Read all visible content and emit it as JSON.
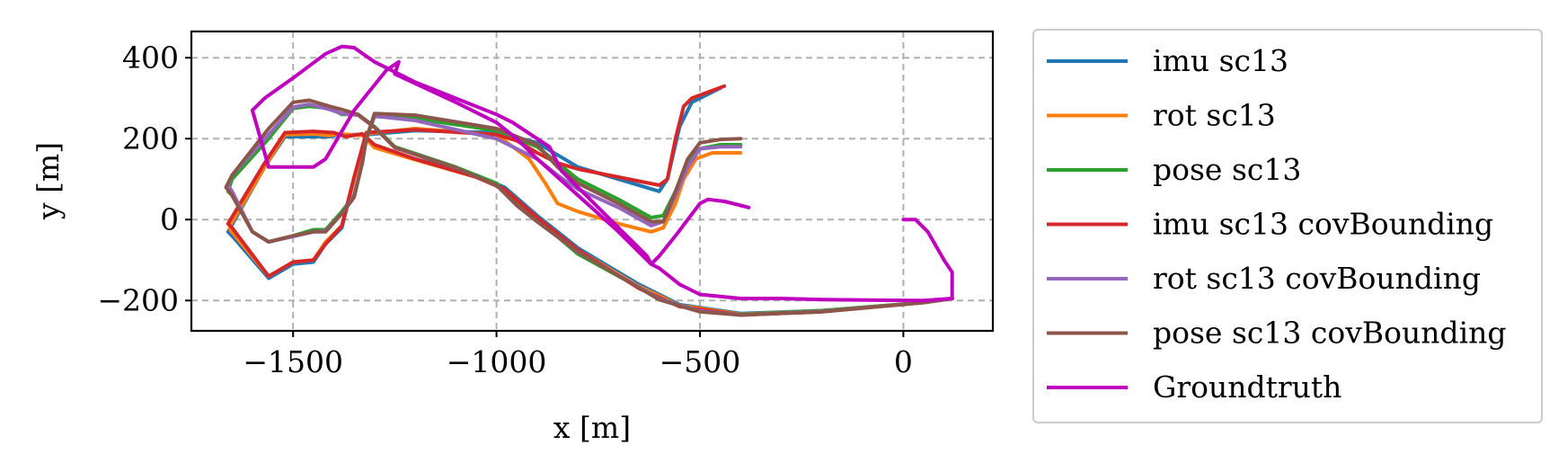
{
  "chart_data": {
    "type": "line",
    "xlabel": "x [m]",
    "ylabel": "y [m]",
    "xlim": [
      -1750,
      220
    ],
    "ylim": [
      -275,
      465
    ],
    "xticks": [
      -1500,
      -1000,
      -500,
      0
    ],
    "xtick_labels": [
      "−1500",
      "−1000",
      "−500",
      "0"
    ],
    "yticks": [
      400,
      200,
      0,
      -200
    ],
    "ytick_labels": [
      "400",
      "200",
      "0",
      "−200"
    ],
    "grid": true,
    "legend_position": "outside right",
    "series": [
      {
        "name": "imu sc13",
        "color": "#1f77b4",
        "points": [
          [
            120,
            -195
          ],
          [
            50,
            -205
          ],
          [
            -200,
            -225
          ],
          [
            -400,
            -232
          ],
          [
            -550,
            -210
          ],
          [
            -650,
            -160
          ],
          [
            -800,
            -70
          ],
          [
            -900,
            10
          ],
          [
            -980,
            80
          ],
          [
            -1050,
            110
          ],
          [
            -1200,
            150
          ],
          [
            -1300,
            180
          ],
          [
            -1330,
            210
          ],
          [
            -1390,
            210
          ],
          [
            -1410,
            205
          ],
          [
            -1450,
            205
          ],
          [
            -1520,
            205
          ],
          [
            -1570,
            130
          ],
          [
            -1660,
            -30
          ],
          [
            -1650,
            -40
          ],
          [
            -1560,
            -145
          ],
          [
            -1500,
            -110
          ],
          [
            -1450,
            -105
          ],
          [
            -1420,
            -60
          ],
          [
            -1380,
            -20
          ],
          [
            -1350,
            100
          ],
          [
            -1320,
            210
          ],
          [
            -1200,
            220
          ],
          [
            -1000,
            215
          ],
          [
            -900,
            190
          ],
          [
            -850,
            160
          ],
          [
            -800,
            130
          ],
          [
            -600,
            70
          ],
          [
            -580,
            100
          ],
          [
            -550,
            230
          ],
          [
            -520,
            290
          ],
          [
            -450,
            325
          ]
        ]
      },
      {
        "name": "rot sc13",
        "color": "#ff7f0e",
        "points": [
          [
            120,
            -195
          ],
          [
            50,
            -205
          ],
          [
            -200,
            -225
          ],
          [
            -400,
            -234
          ],
          [
            -550,
            -212
          ],
          [
            -650,
            -165
          ],
          [
            -800,
            -75
          ],
          [
            -900,
            5
          ],
          [
            -980,
            75
          ],
          [
            -1050,
            105
          ],
          [
            -1200,
            148
          ],
          [
            -1300,
            178
          ],
          [
            -1330,
            208
          ],
          [
            -1390,
            212
          ],
          [
            -1410,
            208
          ],
          [
            -1450,
            212
          ],
          [
            -1520,
            210
          ],
          [
            -1570,
            130
          ],
          [
            -1655,
            -15
          ],
          [
            -1655,
            -25
          ],
          [
            -1560,
            -140
          ],
          [
            -1500,
            -105
          ],
          [
            -1450,
            -100
          ],
          [
            -1420,
            -55
          ],
          [
            -1380,
            -15
          ],
          [
            -1350,
            100
          ],
          [
            -1320,
            212
          ],
          [
            -1200,
            225
          ],
          [
            -1000,
            210
          ],
          [
            -960,
            180
          ],
          [
            -920,
            150
          ],
          [
            -880,
            90
          ],
          [
            -850,
            40
          ],
          [
            -800,
            20
          ],
          [
            -700,
            -10
          ],
          [
            -620,
            -30
          ],
          [
            -590,
            -20
          ],
          [
            -560,
            40
          ],
          [
            -540,
            100
          ],
          [
            -510,
            150
          ],
          [
            -470,
            165
          ],
          [
            -400,
            165
          ]
        ]
      },
      {
        "name": "pose sc13",
        "color": "#2ca02c",
        "points": [
          [
            120,
            -195
          ],
          [
            50,
            -205
          ],
          [
            -200,
            -225
          ],
          [
            -400,
            -235
          ],
          [
            -500,
            -225
          ],
          [
            -600,
            -195
          ],
          [
            -800,
            -85
          ],
          [
            -900,
            0
          ],
          [
            -950,
            40
          ],
          [
            -1000,
            90
          ],
          [
            -1100,
            130
          ],
          [
            -1250,
            180
          ],
          [
            -1300,
            230
          ],
          [
            -1340,
            260
          ],
          [
            -1380,
            260
          ],
          [
            -1410,
            275
          ],
          [
            -1460,
            280
          ],
          [
            -1500,
            275
          ],
          [
            -1560,
            200
          ],
          [
            -1650,
            100
          ],
          [
            -1660,
            70
          ],
          [
            -1650,
            60
          ],
          [
            -1600,
            -30
          ],
          [
            -1560,
            -55
          ],
          [
            -1500,
            -40
          ],
          [
            -1450,
            -25
          ],
          [
            -1420,
            -25
          ],
          [
            -1380,
            20
          ],
          [
            -1350,
            60
          ],
          [
            -1330,
            140
          ],
          [
            -1320,
            200
          ],
          [
            -1300,
            255
          ],
          [
            -1200,
            250
          ],
          [
            -1000,
            220
          ],
          [
            -900,
            180
          ],
          [
            -850,
            140
          ],
          [
            -800,
            100
          ],
          [
            -700,
            50
          ],
          [
            -620,
            5
          ],
          [
            -590,
            10
          ],
          [
            -560,
            70
          ],
          [
            -530,
            140
          ],
          [
            -500,
            175
          ],
          [
            -450,
            185
          ],
          [
            -400,
            185
          ]
        ]
      },
      {
        "name": "imu sc13 covBounding",
        "color": "#d62728",
        "points": [
          [
            120,
            -195
          ],
          [
            50,
            -205
          ],
          [
            -200,
            -228
          ],
          [
            -400,
            -236
          ],
          [
            -550,
            -215
          ],
          [
            -650,
            -170
          ],
          [
            -800,
            -75
          ],
          [
            -900,
            5
          ],
          [
            -980,
            75
          ],
          [
            -1050,
            105
          ],
          [
            -1200,
            150
          ],
          [
            -1300,
            185
          ],
          [
            -1330,
            212
          ],
          [
            -1370,
            205
          ],
          [
            -1400,
            215
          ],
          [
            -1450,
            218
          ],
          [
            -1520,
            215
          ],
          [
            -1570,
            140
          ],
          [
            -1660,
            -10
          ],
          [
            -1650,
            -20
          ],
          [
            -1560,
            -140
          ],
          [
            -1500,
            -105
          ],
          [
            -1450,
            -100
          ],
          [
            -1420,
            -60
          ],
          [
            -1380,
            -15
          ],
          [
            -1350,
            105
          ],
          [
            -1320,
            215
          ],
          [
            -1200,
            222
          ],
          [
            -1000,
            210
          ],
          [
            -950,
            195
          ],
          [
            -900,
            165
          ],
          [
            -850,
            140
          ],
          [
            -800,
            125
          ],
          [
            -600,
            85
          ],
          [
            -580,
            100
          ],
          [
            -560,
            200
          ],
          [
            -540,
            280
          ],
          [
            -520,
            300
          ],
          [
            -440,
            330
          ]
        ]
      },
      {
        "name": "rot sc13 covBounding",
        "color": "#9467bd",
        "points": [
          [
            120,
            -195
          ],
          [
            50,
            -205
          ],
          [
            -200,
            -227
          ],
          [
            -400,
            -236
          ],
          [
            -500,
            -226
          ],
          [
            -600,
            -196
          ],
          [
            -800,
            -80
          ],
          [
            -900,
            -5
          ],
          [
            -950,
            35
          ],
          [
            -1000,
            85
          ],
          [
            -1100,
            128
          ],
          [
            -1250,
            178
          ],
          [
            -1300,
            228
          ],
          [
            -1340,
            258
          ],
          [
            -1380,
            262
          ],
          [
            -1410,
            272
          ],
          [
            -1460,
            285
          ],
          [
            -1500,
            278
          ],
          [
            -1560,
            210
          ],
          [
            -1650,
            110
          ],
          [
            -1660,
            85
          ],
          [
            -1650,
            70
          ],
          [
            -1600,
            -30
          ],
          [
            -1560,
            -55
          ],
          [
            -1500,
            -42
          ],
          [
            -1450,
            -30
          ],
          [
            -1420,
            -28
          ],
          [
            -1380,
            15
          ],
          [
            -1350,
            58
          ],
          [
            -1330,
            140
          ],
          [
            -1320,
            200
          ],
          [
            -1300,
            256
          ],
          [
            -1200,
            245
          ],
          [
            -1000,
            200
          ],
          [
            -900,
            150
          ],
          [
            -850,
            110
          ],
          [
            -800,
            75
          ],
          [
            -700,
            30
          ],
          [
            -620,
            -15
          ],
          [
            -590,
            -5
          ],
          [
            -560,
            60
          ],
          [
            -530,
            130
          ],
          [
            -500,
            175
          ],
          [
            -450,
            180
          ],
          [
            -400,
            180
          ]
        ]
      },
      {
        "name": "pose sc13 covBounding",
        "color": "#8c564b",
        "points": [
          [
            120,
            -195
          ],
          [
            50,
            -205
          ],
          [
            -200,
            -228
          ],
          [
            -400,
            -236
          ],
          [
            -500,
            -228
          ],
          [
            -600,
            -198
          ],
          [
            -800,
            -80
          ],
          [
            -900,
            -5
          ],
          [
            -950,
            35
          ],
          [
            -1000,
            85
          ],
          [
            -1100,
            128
          ],
          [
            -1250,
            178
          ],
          [
            -1300,
            228
          ],
          [
            -1340,
            260
          ],
          [
            -1380,
            272
          ],
          [
            -1410,
            280
          ],
          [
            -1460,
            295
          ],
          [
            -1500,
            290
          ],
          [
            -1560,
            225
          ],
          [
            -1650,
            110
          ],
          [
            -1665,
            80
          ],
          [
            -1650,
            60
          ],
          [
            -1600,
            -30
          ],
          [
            -1560,
            -55
          ],
          [
            -1500,
            -40
          ],
          [
            -1450,
            -30
          ],
          [
            -1420,
            -30
          ],
          [
            -1380,
            15
          ],
          [
            -1350,
            55
          ],
          [
            -1330,
            140
          ],
          [
            -1320,
            200
          ],
          [
            -1300,
            262
          ],
          [
            -1200,
            258
          ],
          [
            -1000,
            225
          ],
          [
            -900,
            185
          ],
          [
            -850,
            130
          ],
          [
            -800,
            90
          ],
          [
            -700,
            40
          ],
          [
            -620,
            -5
          ],
          [
            -590,
            -5
          ],
          [
            -560,
            70
          ],
          [
            -530,
            150
          ],
          [
            -500,
            190
          ],
          [
            -450,
            198
          ],
          [
            -400,
            200
          ]
        ]
      },
      {
        "name": "Groundtruth",
        "color": "#bf00bf",
        "points": [
          [
            0,
            0
          ],
          [
            30,
            0
          ],
          [
            60,
            -30
          ],
          [
            100,
            -100
          ],
          [
            120,
            -130
          ],
          [
            120,
            -195
          ],
          [
            50,
            -200
          ],
          [
            -200,
            -198
          ],
          [
            -300,
            -195
          ],
          [
            -400,
            -195
          ],
          [
            -500,
            -185
          ],
          [
            -550,
            -160
          ],
          [
            -600,
            -120
          ],
          [
            -620,
            -110
          ],
          [
            -640,
            -90
          ],
          [
            -700,
            -30
          ],
          [
            -800,
            60
          ],
          [
            -900,
            150
          ],
          [
            -950,
            200
          ],
          [
            -1000,
            240
          ],
          [
            -1100,
            290
          ],
          [
            -1250,
            360
          ],
          [
            -1240,
            390
          ],
          [
            -1270,
            370
          ],
          [
            -1350,
            270
          ],
          [
            -1420,
            150
          ],
          [
            -1450,
            130
          ],
          [
            -1500,
            130
          ],
          [
            -1560,
            130
          ],
          [
            -1600,
            270
          ],
          [
            -1570,
            300
          ],
          [
            -1500,
            350
          ],
          [
            -1420,
            410
          ],
          [
            -1380,
            428
          ],
          [
            -1350,
            425
          ],
          [
            -1300,
            390
          ],
          [
            -1200,
            340
          ],
          [
            -1100,
            300
          ],
          [
            -1000,
            260
          ],
          [
            -960,
            240
          ],
          [
            -930,
            220
          ],
          [
            -900,
            200
          ],
          [
            -870,
            180
          ],
          [
            -840,
            120
          ],
          [
            -800,
            80
          ],
          [
            -700,
            -20
          ],
          [
            -630,
            -90
          ],
          [
            -620,
            -110
          ],
          [
            -600,
            -90
          ],
          [
            -560,
            -40
          ],
          [
            -530,
            0
          ],
          [
            -500,
            40
          ],
          [
            -480,
            50
          ],
          [
            -440,
            45
          ],
          [
            -400,
            35
          ],
          [
            -380,
            30
          ]
        ]
      }
    ]
  }
}
